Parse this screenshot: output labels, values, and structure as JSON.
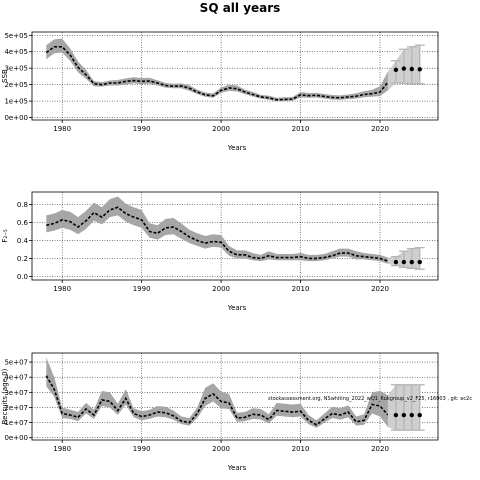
{
  "figure": {
    "title": "SQ all years",
    "annotation": "stockassessment.org, NSwhiting_2022_wQ1_6ukgroup_v2_F25, r16003 , git: ec2c"
  },
  "chart_data": [
    {
      "type": "line",
      "name": "ssb",
      "xlabel": "Years",
      "ylabel": "SSB",
      "xlim": [
        1976.2,
        2027.3
      ],
      "ylim": [
        -15000,
        520000
      ],
      "xticks": [
        1980,
        1990,
        2000,
        2010,
        2020
      ],
      "xtick_labels": [
        "1980",
        "1990",
        "2000",
        "2010",
        "2020"
      ],
      "yticks": [
        0,
        100000,
        200000,
        300000,
        400000,
        500000
      ],
      "ytick_labels": [
        "0e+00",
        "1e+05",
        "2e+05",
        "3e+05",
        "4e+05",
        "5e+05"
      ],
      "grid": true,
      "x": [
        1978,
        1979,
        1980,
        1981,
        1982,
        1983,
        1984,
        1985,
        1986,
        1987,
        1988,
        1989,
        1990,
        1991,
        1992,
        1993,
        1994,
        1995,
        1996,
        1997,
        1998,
        1999,
        2000,
        2001,
        2002,
        2003,
        2004,
        2005,
        2006,
        2007,
        2008,
        2009,
        2010,
        2011,
        2012,
        2013,
        2014,
        2015,
        2016,
        2017,
        2018,
        2019,
        2020,
        2021
      ],
      "estimate": [
        395000,
        430000,
        430000,
        380000,
        305000,
        260000,
        205000,
        200000,
        210000,
        210000,
        220000,
        225000,
        220000,
        222000,
        210000,
        195000,
        190000,
        192000,
        178000,
        155000,
        138000,
        132000,
        165000,
        180000,
        175000,
        155000,
        140000,
        125000,
        120000,
        108000,
        110000,
        112000,
        138000,
        133000,
        135000,
        128000,
        122000,
        120000,
        125000,
        130000,
        140000,
        145000,
        155000,
        215000
      ],
      "lower": [
        355000,
        390000,
        395000,
        345000,
        275000,
        235000,
        190000,
        188000,
        195000,
        195000,
        202000,
        208000,
        203000,
        205000,
        195000,
        182000,
        178000,
        178000,
        163000,
        142000,
        126000,
        120000,
        150000,
        162000,
        158000,
        142000,
        128000,
        115000,
        108000,
        98000,
        100000,
        102000,
        122000,
        120000,
        122000,
        115000,
        110000,
        108000,
        112000,
        115000,
        123000,
        127000,
        130000,
        165000
      ],
      "upper": [
        440000,
        475000,
        480000,
        420000,
        340000,
        290000,
        222000,
        215000,
        225000,
        228000,
        238000,
        245000,
        240000,
        242000,
        226000,
        210000,
        205000,
        208000,
        196000,
        170000,
        152000,
        146000,
        182000,
        200000,
        195000,
        170000,
        155000,
        138000,
        133000,
        120000,
        123000,
        125000,
        155000,
        149000,
        150000,
        143000,
        137000,
        135000,
        140000,
        148000,
        160000,
        168000,
        190000,
        280000
      ],
      "forecast": {
        "x": [
          2022,
          2023,
          2024,
          2025
        ],
        "estimate": [
          290000,
          298000,
          295000,
          293000
        ],
        "lower": [
          210000,
          208000,
          205000,
          205000
        ],
        "upper": [
          345000,
          415000,
          430000,
          440000
        ]
      }
    },
    {
      "type": "line",
      "name": "f",
      "xlabel": "Years",
      "ylabel": "F₂₋₅",
      "xlim": [
        1976.2,
        2027.3
      ],
      "ylim": [
        -0.04,
        0.94
      ],
      "xticks": [
        1980,
        1990,
        2000,
        2010,
        2020
      ],
      "xtick_labels": [
        "1980",
        "1990",
        "2000",
        "2010",
        "2020"
      ],
      "yticks": [
        0.0,
        0.2,
        0.4,
        0.6,
        0.8
      ],
      "ytick_labels": [
        "0.0",
        "0.2",
        "0.4",
        "0.6",
        "0.8"
      ],
      "grid": true,
      "x": [
        1978,
        1979,
        1980,
        1981,
        1982,
        1983,
        1984,
        1985,
        1986,
        1987,
        1988,
        1989,
        1990,
        1991,
        1992,
        1993,
        1994,
        1995,
        1996,
        1997,
        1998,
        1999,
        2000,
        2001,
        2002,
        2003,
        2004,
        2005,
        2006,
        2007,
        2008,
        2009,
        2010,
        2011,
        2012,
        2013,
        2014,
        2015,
        2016,
        2017,
        2018,
        2019,
        2020,
        2021
      ],
      "estimate": [
        0.57,
        0.59,
        0.63,
        0.61,
        0.55,
        0.62,
        0.71,
        0.66,
        0.74,
        0.77,
        0.7,
        0.66,
        0.63,
        0.5,
        0.48,
        0.54,
        0.55,
        0.5,
        0.44,
        0.4,
        0.37,
        0.39,
        0.38,
        0.28,
        0.24,
        0.24,
        0.21,
        0.2,
        0.23,
        0.21,
        0.21,
        0.21,
        0.22,
        0.2,
        0.2,
        0.21,
        0.23,
        0.26,
        0.26,
        0.23,
        0.22,
        0.21,
        0.2,
        0.17
      ],
      "lower": [
        0.49,
        0.51,
        0.54,
        0.52,
        0.47,
        0.53,
        0.62,
        0.58,
        0.66,
        0.68,
        0.61,
        0.57,
        0.54,
        0.43,
        0.41,
        0.46,
        0.47,
        0.42,
        0.37,
        0.34,
        0.31,
        0.33,
        0.32,
        0.23,
        0.2,
        0.2,
        0.18,
        0.17,
        0.19,
        0.18,
        0.18,
        0.18,
        0.18,
        0.17,
        0.17,
        0.18,
        0.2,
        0.22,
        0.22,
        0.19,
        0.19,
        0.18,
        0.17,
        0.14
      ],
      "upper": [
        0.68,
        0.7,
        0.74,
        0.72,
        0.66,
        0.73,
        0.82,
        0.77,
        0.86,
        0.89,
        0.81,
        0.77,
        0.74,
        0.59,
        0.57,
        0.64,
        0.65,
        0.59,
        0.52,
        0.48,
        0.45,
        0.47,
        0.46,
        0.34,
        0.29,
        0.29,
        0.26,
        0.24,
        0.28,
        0.25,
        0.25,
        0.25,
        0.26,
        0.24,
        0.24,
        0.25,
        0.28,
        0.31,
        0.31,
        0.28,
        0.26,
        0.25,
        0.24,
        0.21
      ],
      "forecast": {
        "x": [
          2022,
          2023,
          2024,
          2025
        ],
        "estimate": [
          0.16,
          0.16,
          0.16,
          0.16
        ],
        "lower": [
          0.12,
          0.1,
          0.09,
          0.08
        ],
        "upper": [
          0.22,
          0.28,
          0.31,
          0.32
        ]
      }
    },
    {
      "type": "line",
      "name": "recruits",
      "xlabel": "Years",
      "ylabel": "Recruits (age 0)",
      "xlim": [
        1976.2,
        2027.3
      ],
      "ylim": [
        -1500000,
        56000000
      ],
      "xticks": [
        1980,
        1990,
        2000,
        2010,
        2020
      ],
      "xtick_labels": [
        "1980",
        "1990",
        "2000",
        "2010",
        "2020"
      ],
      "yticks": [
        0,
        10000000,
        20000000,
        30000000,
        40000000,
        50000000
      ],
      "ytick_labels": [
        "0e+00",
        "1e+07",
        "2e+07",
        "3e+07",
        "4e+07",
        "5e+07"
      ],
      "grid": true,
      "x": [
        1978,
        1979,
        1980,
        1981,
        1982,
        1983,
        1984,
        1985,
        1986,
        1987,
        1988,
        1989,
        1990,
        1991,
        1992,
        1993,
        1994,
        1995,
        1996,
        1997,
        1998,
        1999,
        2000,
        2001,
        2002,
        2003,
        2004,
        2005,
        2006,
        2007,
        2008,
        2009,
        2010,
        2011,
        2012,
        2013,
        2014,
        2015,
        2016,
        2017,
        2018,
        2019,
        2020,
        2021
      ],
      "estimate": [
        41000000,
        32000000,
        16000000,
        15000000,
        13500000,
        19000000,
        15000000,
        25000000,
        24000000,
        18000000,
        26000000,
        16000000,
        14000000,
        15000000,
        17000000,
        16500000,
        14500000,
        11000000,
        10000000,
        16000000,
        26000000,
        29000000,
        24000000,
        23000000,
        13000000,
        13500000,
        15500000,
        15000000,
        12000000,
        18000000,
        17500000,
        17000000,
        17500000,
        11500000,
        8500000,
        12500000,
        16000000,
        15000000,
        17000000,
        10500000,
        11500000,
        22000000,
        21000000,
        15000000
      ],
      "lower": [
        34000000,
        27000000,
        13000000,
        12500000,
        11000000,
        16000000,
        12500000,
        21000000,
        20000000,
        15000000,
        22000000,
        13500000,
        11500000,
        12500000,
        14000000,
        13500000,
        12000000,
        9000000,
        8000000,
        13000000,
        21000000,
        24000000,
        19500000,
        19000000,
        10500000,
        11000000,
        12500000,
        12000000,
        9500000,
        14500000,
        14000000,
        13500000,
        14000000,
        9000000,
        6500000,
        10000000,
        13000000,
        12000000,
        13500000,
        8000000,
        8500000,
        16000000,
        14000000,
        7000000
      ],
      "upper": [
        53000000,
        40000000,
        20000000,
        18500000,
        17000000,
        23000000,
        18500000,
        31000000,
        30000000,
        22500000,
        32000000,
        19500000,
        17500000,
        18500000,
        21000000,
        20500000,
        18000000,
        14000000,
        13000000,
        20000000,
        33000000,
        36000000,
        30500000,
        29000000,
        16500000,
        17000000,
        19500000,
        19000000,
        15500000,
        23000000,
        22500000,
        22000000,
        22500000,
        15000000,
        11500000,
        16000000,
        20500000,
        19500000,
        21500000,
        14000000,
        15500000,
        30000000,
        31000000,
        28000000
      ],
      "forecast": {
        "x": [
          2022,
          2023,
          2024,
          2025
        ],
        "estimate": [
          15000000,
          15000000,
          15000000,
          15000000
        ],
        "lower": [
          5000000,
          5000000,
          5000000,
          5000000
        ],
        "upper": [
          35000000,
          35000000,
          35000000,
          35000000
        ]
      }
    }
  ]
}
